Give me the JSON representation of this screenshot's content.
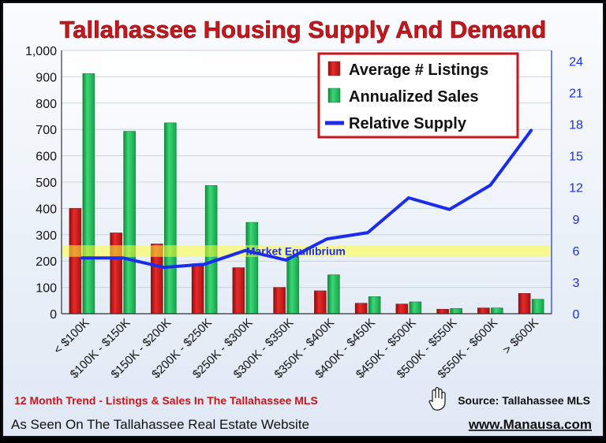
{
  "title": "Tallahassee Housing Supply And Demand",
  "footer": {
    "trend_note": "12 Month Trend - Listings & Sales In The Tallahassee MLS",
    "source": "Source: Tallahassee MLS",
    "as_seen": "As Seen On The Tallahassee Real Estate Website",
    "website": "www.Manausa.com"
  },
  "colors": {
    "listings": "#d42020",
    "sales": "#22c05a",
    "supply": "#1a2cf0",
    "title": "#c8161c",
    "equilibrium_band": "#ffff3a"
  },
  "chart_data": {
    "type": "bar",
    "categories": [
      "< $100K",
      "$100K - $150K",
      "$150K - $200K",
      "$200K - $250K",
      "$250K - $300K",
      "$300K - $350K",
      "$350K - $400K",
      "$400K - $450K",
      "$450K - $500K",
      "$500K - $550K",
      "$550K - $600K",
      "> $600K"
    ],
    "series": [
      {
        "name": "Average # Listings",
        "type": "bar",
        "axis": "left",
        "values": [
          400,
          307,
          265,
          190,
          175,
          100,
          87,
          40,
          37,
          17,
          22,
          77
        ]
      },
      {
        "name": "Annualized Sales",
        "type": "bar",
        "axis": "left",
        "values": [
          912,
          693,
          725,
          487,
          347,
          223,
          148,
          65,
          45,
          20,
          22,
          55
        ]
      },
      {
        "name": "Relative Supply",
        "type": "line",
        "axis": "right",
        "values": [
          5.3,
          5.3,
          4.4,
          4.7,
          6.0,
          5.1,
          7.1,
          7.7,
          11.0,
          9.9,
          12.2,
          17.4
        ]
      }
    ],
    "y_left": {
      "min": 0,
      "max": 1000,
      "ticks": [
        0,
        100,
        200,
        300,
        400,
        500,
        600,
        700,
        800,
        900,
        "1,000"
      ]
    },
    "y_right": {
      "min": 0,
      "max": 25,
      "ticks": [
        0,
        3,
        6,
        9,
        12,
        15,
        18,
        21,
        24
      ]
    },
    "annotation": {
      "label": "Market Equilibrium",
      "min": 5.4,
      "max": 6.5
    },
    "legend_position": "top-right",
    "grid": true
  }
}
